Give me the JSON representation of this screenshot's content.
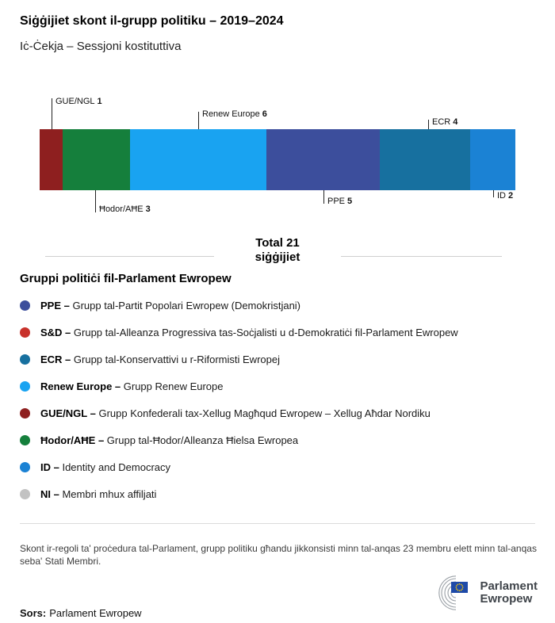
{
  "header": {
    "title": "Siġġijiet skont il-grupp politiku – 2019–2024",
    "subtitle": "Iċ-Ċekja – Sessjoni kostituttiva"
  },
  "chart_data": {
    "type": "bar",
    "variant": "horizontal-stacked",
    "title": "Siġġijiet skont il-grupp politiku – 2019–2024",
    "subtitle": "Iċ-Ċekja – Sessjoni kostituttiva",
    "total_seats": 21,
    "total_label": "Total 21 siġġijiet",
    "segments": [
      {
        "name": "GUE/NGL",
        "value": 1,
        "color": "#8e1f1f",
        "label_position": "top"
      },
      {
        "name": "Ħodor/AĦE",
        "value": 3,
        "color": "#157f3c",
        "label_position": "bottom"
      },
      {
        "name": "Renew Europe",
        "value": 6,
        "color": "#19a3f1",
        "label_position": "top"
      },
      {
        "name": "PPE",
        "value": 5,
        "color": "#3c4e9c",
        "label_position": "bottom"
      },
      {
        "name": "ECR",
        "value": 4,
        "color": "#17709f",
        "label_position": "top"
      },
      {
        "name": "ID",
        "value": 2,
        "color": "#1b82d4",
        "label_position": "bottom"
      }
    ]
  },
  "total": {
    "line1": "Total 21",
    "line2": "siġġijiet"
  },
  "legend": {
    "title": "Gruppi politiċi fil-Parlament Ewropew",
    "items": [
      {
        "label": "PPE –",
        "desc": "Grupp tal-Partit Popolari Ewropew (Demokristjani)",
        "color": "#3c4e9c"
      },
      {
        "label": "S&D –",
        "desc": "Grupp tal-Alleanza Progressiva tas-Soċjalisti u d-Demokratiċi fil-Parlament Ewropew",
        "color": "#c8312b"
      },
      {
        "label": "ECR –",
        "desc": "Grupp tal-Konservattivi u r-Riformisti Ewropej",
        "color": "#17709f"
      },
      {
        "label": "Renew Europe –",
        "desc": "Grupp Renew Europe",
        "color": "#19a3f1"
      },
      {
        "label": "GUE/NGL –",
        "desc": "Grupp Konfederali tax-Xellug Magħqud Ewropew – Xellug Aħdar Nordiku",
        "color": "#8e1f1f"
      },
      {
        "label": "Ħodor/AĦE –",
        "desc": "Grupp tal-Ħodor/Alleanza Ħielsa Ewropea",
        "color": "#157f3c"
      },
      {
        "label": "ID –",
        "desc": "Identity and Democracy",
        "color": "#1b82d4"
      },
      {
        "label": "NI –",
        "desc": "Membri mhux affiljati",
        "color": "#c2c2c2"
      }
    ]
  },
  "footer": {
    "note": "Skont ir-regoli ta' proċedura tal-Parlament, grupp politiku għandu jikkonsisti minn tal-anqas 23 membru elett minn tal-anqas seba' Stati Membri.",
    "source_label": "Sors:",
    "source_value": "Parlament Ewropew",
    "logo_line1": "Parlament",
    "logo_line2": "Ewropew"
  }
}
